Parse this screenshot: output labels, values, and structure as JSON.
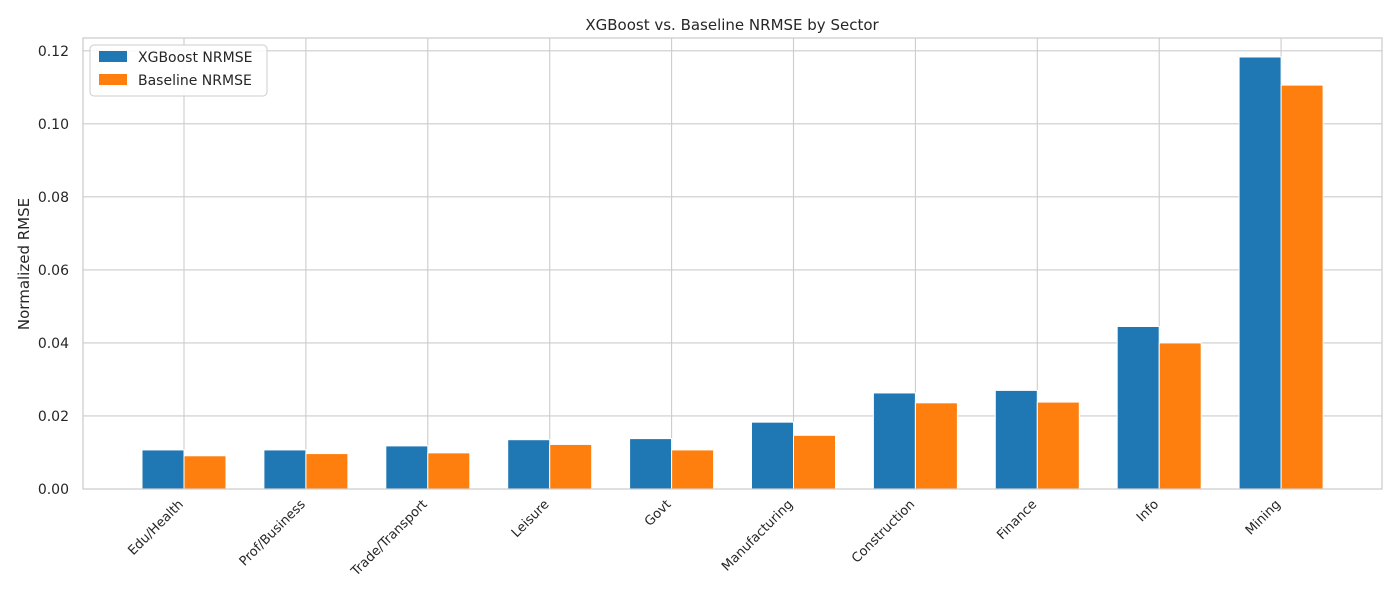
{
  "chart_data": {
    "type": "bar",
    "title": "XGBoost vs. Baseline NRMSE by Sector",
    "xlabel": "",
    "ylabel": "Normalized RMSE",
    "ylim": [
      0,
      0.1235
    ],
    "yticks": [
      "0.00",
      "0.02",
      "0.04",
      "0.06",
      "0.08",
      "0.10",
      "0.12"
    ],
    "grid": true,
    "legend_position": "top-left",
    "categories": [
      "Edu/Health",
      "Prof/Business",
      "Trade/Transport",
      "Leisure",
      "Govt",
      "Manufacturing",
      "Construction",
      "Finance",
      "Info",
      "Mining"
    ],
    "series": [
      {
        "name": "XGBoost NRMSE",
        "color": "#1f77b4",
        "values": [
          0.0107,
          0.0107,
          0.0118,
          0.0135,
          0.0138,
          0.0183,
          0.0263,
          0.027,
          0.0445,
          0.1183
        ]
      },
      {
        "name": "Baseline NRMSE",
        "color": "#ff7f0e",
        "values": [
          0.0091,
          0.0097,
          0.0099,
          0.0122,
          0.0107,
          0.0147,
          0.0236,
          0.0238,
          0.04,
          0.1106
        ]
      }
    ]
  }
}
